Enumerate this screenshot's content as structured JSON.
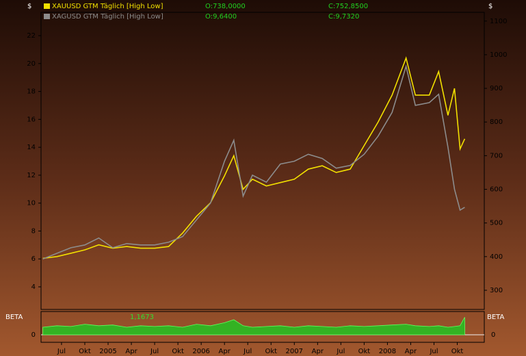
{
  "chart_data": [
    {
      "type": "line",
      "y_label": "$",
      "y2_label": "$",
      "x": [
        2004.3,
        2004.45,
        2004.6,
        2004.75,
        2004.9,
        2005.05,
        2005.2,
        2005.35,
        2005.5,
        2005.65,
        2005.8,
        2005.95,
        2006.1,
        2006.25,
        2006.35,
        2006.45,
        2006.55,
        2006.7,
        2006.85,
        2007.0,
        2007.15,
        2007.3,
        2007.45,
        2007.6,
        2007.75,
        2007.9,
        2008.05,
        2008.2,
        2008.3,
        2008.45,
        2008.55,
        2008.65,
        2008.72,
        2008.78,
        2008.83
      ],
      "xlim": [
        2004.28,
        2009.04
      ],
      "xticks": [
        {
          "value": 2004.5,
          "label": "Jul"
        },
        {
          "value": 2004.75,
          "label": "Okt"
        },
        {
          "value": 2005.0,
          "label": "2005"
        },
        {
          "value": 2005.25,
          "label": "Apr"
        },
        {
          "value": 2005.5,
          "label": "Jul"
        },
        {
          "value": 2005.75,
          "label": "Okt"
        },
        {
          "value": 2006.0,
          "label": "2006"
        },
        {
          "value": 2006.25,
          "label": "Apr"
        },
        {
          "value": 2006.5,
          "label": "Jul"
        },
        {
          "value": 2006.75,
          "label": "Okt"
        },
        {
          "value": 2007.0,
          "label": "2007"
        },
        {
          "value": 2007.25,
          "label": "Apr"
        },
        {
          "value": 2007.5,
          "label": "Jul"
        },
        {
          "value": 2007.75,
          "label": "Okt"
        },
        {
          "value": 2008.0,
          "label": "2008"
        },
        {
          "value": 2008.25,
          "label": "Apr"
        },
        {
          "value": 2008.5,
          "label": "Jul"
        },
        {
          "value": 2008.75,
          "label": "Okt"
        }
      ],
      "ylim": [
        2.38,
        23.67
      ],
      "yticks": [
        4,
        6,
        8,
        10,
        12,
        14,
        16,
        18,
        20,
        22
      ],
      "y2lim": [
        243,
        1126
      ],
      "y2ticks": [
        300,
        400,
        500,
        600,
        700,
        800,
        900,
        1000,
        1100
      ],
      "series": [
        {
          "name": "XAUUSD GTM Täglich [High Low]",
          "color": "#f2e000",
          "axis": "y2",
          "open_label": "O:738,0000",
          "close_label": "C:752,8500",
          "values": [
            395,
            400,
            410,
            420,
            435,
            425,
            430,
            425,
            425,
            430,
            470,
            520,
            560,
            640,
            700,
            600,
            630,
            610,
            620,
            630,
            660,
            670,
            650,
            660,
            730,
            800,
            880,
            990,
            880,
            880,
            950,
            820,
            900,
            720,
            750
          ]
        },
        {
          "name": "XAGUSD GTM Täglich [High Low]",
          "color": "#8c8c8c",
          "open_label": "O:9,6400",
          "close_label": "C:9,7320",
          "values": [
            6.0,
            6.4,
            6.8,
            7.0,
            7.5,
            6.8,
            7.1,
            7.0,
            7.0,
            7.2,
            7.6,
            8.8,
            10.0,
            13.0,
            14.5,
            10.5,
            12.0,
            11.5,
            12.8,
            13.0,
            13.5,
            13.2,
            12.5,
            12.7,
            13.5,
            14.8,
            16.5,
            19.8,
            17.0,
            17.2,
            17.8,
            14.0,
            11.0,
            9.5,
            9.7
          ]
        }
      ]
    },
    {
      "type": "area",
      "y_label": "BETA",
      "current_label": "1,1673",
      "color": "#22c322",
      "x": [
        2004.3,
        2004.45,
        2004.6,
        2004.75,
        2004.9,
        2005.05,
        2005.2,
        2005.35,
        2005.5,
        2005.65,
        2005.8,
        2005.95,
        2006.1,
        2006.25,
        2006.35,
        2006.45,
        2006.55,
        2006.7,
        2006.85,
        2007.0,
        2007.15,
        2007.3,
        2007.45,
        2007.6,
        2007.75,
        2007.9,
        2008.05,
        2008.2,
        2008.3,
        2008.45,
        2008.55,
        2008.65,
        2008.72,
        2008.78,
        2008.83
      ],
      "values": [
        0.5,
        0.6,
        0.55,
        0.7,
        0.6,
        0.65,
        0.5,
        0.6,
        0.55,
        0.6,
        0.5,
        0.7,
        0.6,
        0.8,
        1.0,
        0.6,
        0.5,
        0.55,
        0.6,
        0.5,
        0.6,
        0.55,
        0.5,
        0.6,
        0.55,
        0.6,
        0.65,
        0.7,
        0.6,
        0.55,
        0.6,
        0.5,
        0.55,
        0.6,
        1.1673
      ],
      "ylim": [
        -0.5,
        1.5
      ],
      "yticks": [
        0
      ]
    }
  ]
}
